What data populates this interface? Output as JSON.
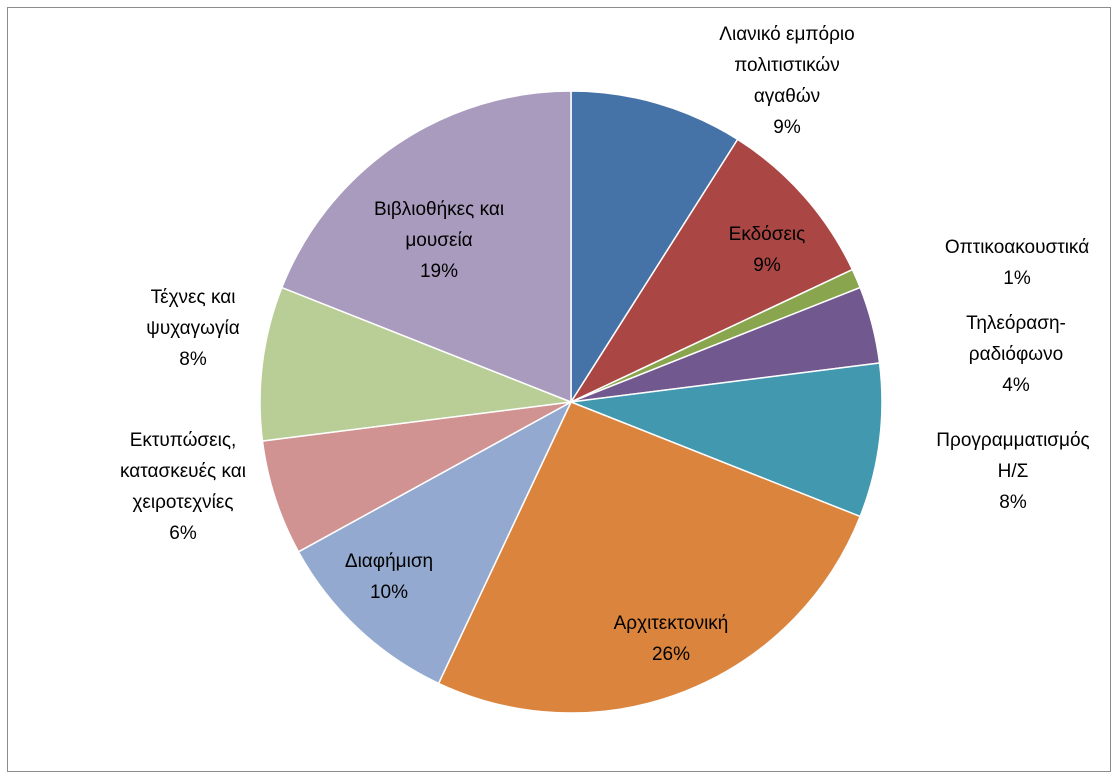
{
  "chart_data": {
    "type": "pie",
    "start_angle_deg": 0,
    "direction": "clockwise",
    "slices": [
      {
        "label": [
          "Λιανικό εμπόριο",
          "πολιτιστικών",
          "αγαθών"
        ],
        "pct": "9%",
        "value": 9,
        "color": "#4572a7"
      },
      {
        "label": [
          "Εκδόσεις"
        ],
        "pct": "9%",
        "value": 9,
        "color": "#aa4643"
      },
      {
        "label": [
          "Οπτικοακουστικά"
        ],
        "pct": "1%",
        "value": 1,
        "color": "#89a54e"
      },
      {
        "label": [
          "Τηλεόραση-",
          "ραδιόφωνο"
        ],
        "pct": "4%",
        "value": 4,
        "color": "#71588f"
      },
      {
        "label": [
          "Προγραμματισμός",
          "Η/Σ"
        ],
        "pct": "8%",
        "value": 8,
        "color": "#4198af"
      },
      {
        "label": [
          "Αρχιτεκτονική"
        ],
        "pct": "26%",
        "value": 26,
        "color": "#db843d"
      },
      {
        "label": [
          "Διαφήμιση"
        ],
        "pct": "10%",
        "value": 10,
        "color": "#93a9cf"
      },
      {
        "label": [
          "Εκτυπώσεις,",
          "κατασκευές και",
          "χειροτεχνίες"
        ],
        "pct": "6%",
        "value": 6,
        "color": "#d19392"
      },
      {
        "label": [
          "Τέχνες και",
          "ψυχαγωγία"
        ],
        "pct": "8%",
        "value": 8,
        "color": "#b9cd96"
      },
      {
        "label": [
          "Βιβλιοθήκες και",
          "μουσεία"
        ],
        "pct": "19%",
        "value": 19,
        "color": "#a99bbd"
      }
    ]
  }
}
